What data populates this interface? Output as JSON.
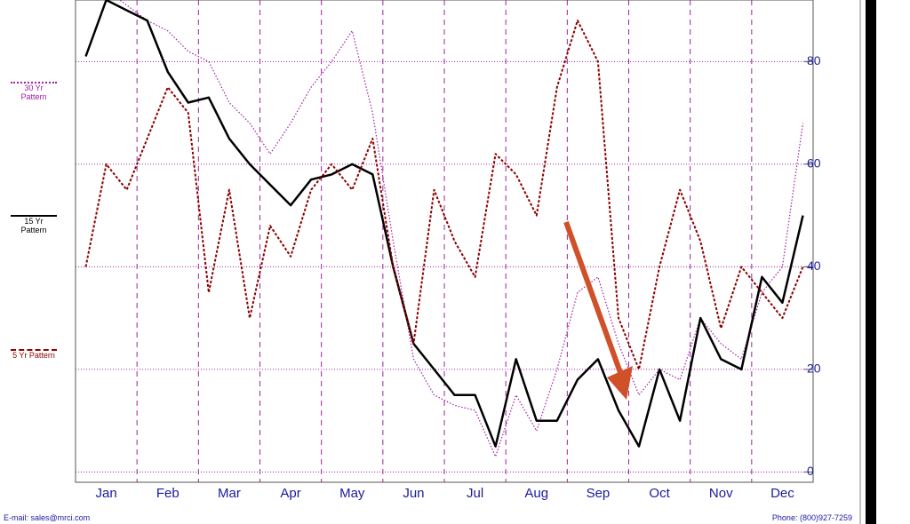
{
  "chart_data": {
    "type": "line",
    "categories": [
      null,
      "Jan",
      null,
      null,
      "Feb",
      null,
      null,
      "Mar",
      null,
      null,
      "Apr",
      null,
      null,
      "May",
      null,
      null,
      "Jun",
      null,
      null,
      "Jul",
      null,
      null,
      "Aug",
      null,
      null,
      "Sep",
      null,
      null,
      "Oct",
      null,
      null,
      "Nov",
      null,
      null,
      "Dec",
      null
    ],
    "series": [
      {
        "name": "30 Yr Pattern",
        "color": "#a020a0",
        "values": [
          92,
          94,
          91,
          88,
          86,
          82,
          80,
          72,
          68,
          62,
          68,
          75,
          80,
          86,
          70,
          45,
          22,
          15,
          13,
          12,
          3,
          15,
          8,
          20,
          35,
          38,
          25,
          15,
          20,
          18,
          30,
          25,
          22,
          35,
          40,
          68
        ]
      },
      {
        "name": "15 Yr Pattern",
        "color": "#000000",
        "values": [
          81,
          92,
          90,
          88,
          78,
          72,
          73,
          65,
          60,
          56,
          52,
          57,
          58,
          60,
          58,
          40,
          25,
          20,
          15,
          15,
          5,
          22,
          10,
          10,
          18,
          22,
          12,
          5,
          20,
          10,
          30,
          22,
          20,
          38,
          33,
          50
        ]
      },
      {
        "name": "5 Yr Pattern",
        "color": "#8b0000",
        "values": [
          40,
          60,
          55,
          65,
          75,
          70,
          35,
          55,
          30,
          48,
          42,
          55,
          60,
          55,
          65,
          40,
          25,
          55,
          45,
          38,
          62,
          58,
          50,
          75,
          88,
          80,
          30,
          20,
          40,
          55,
          45,
          28,
          40,
          35,
          30,
          40
        ]
      }
    ],
    "ylim": [
      -2,
      92
    ],
    "yticks": [
      0,
      20,
      40,
      60,
      80
    ],
    "grid": true,
    "footer_left": "E-mail: sales@mrci.com",
    "footer_right": "Phone: (800)927-7259"
  }
}
